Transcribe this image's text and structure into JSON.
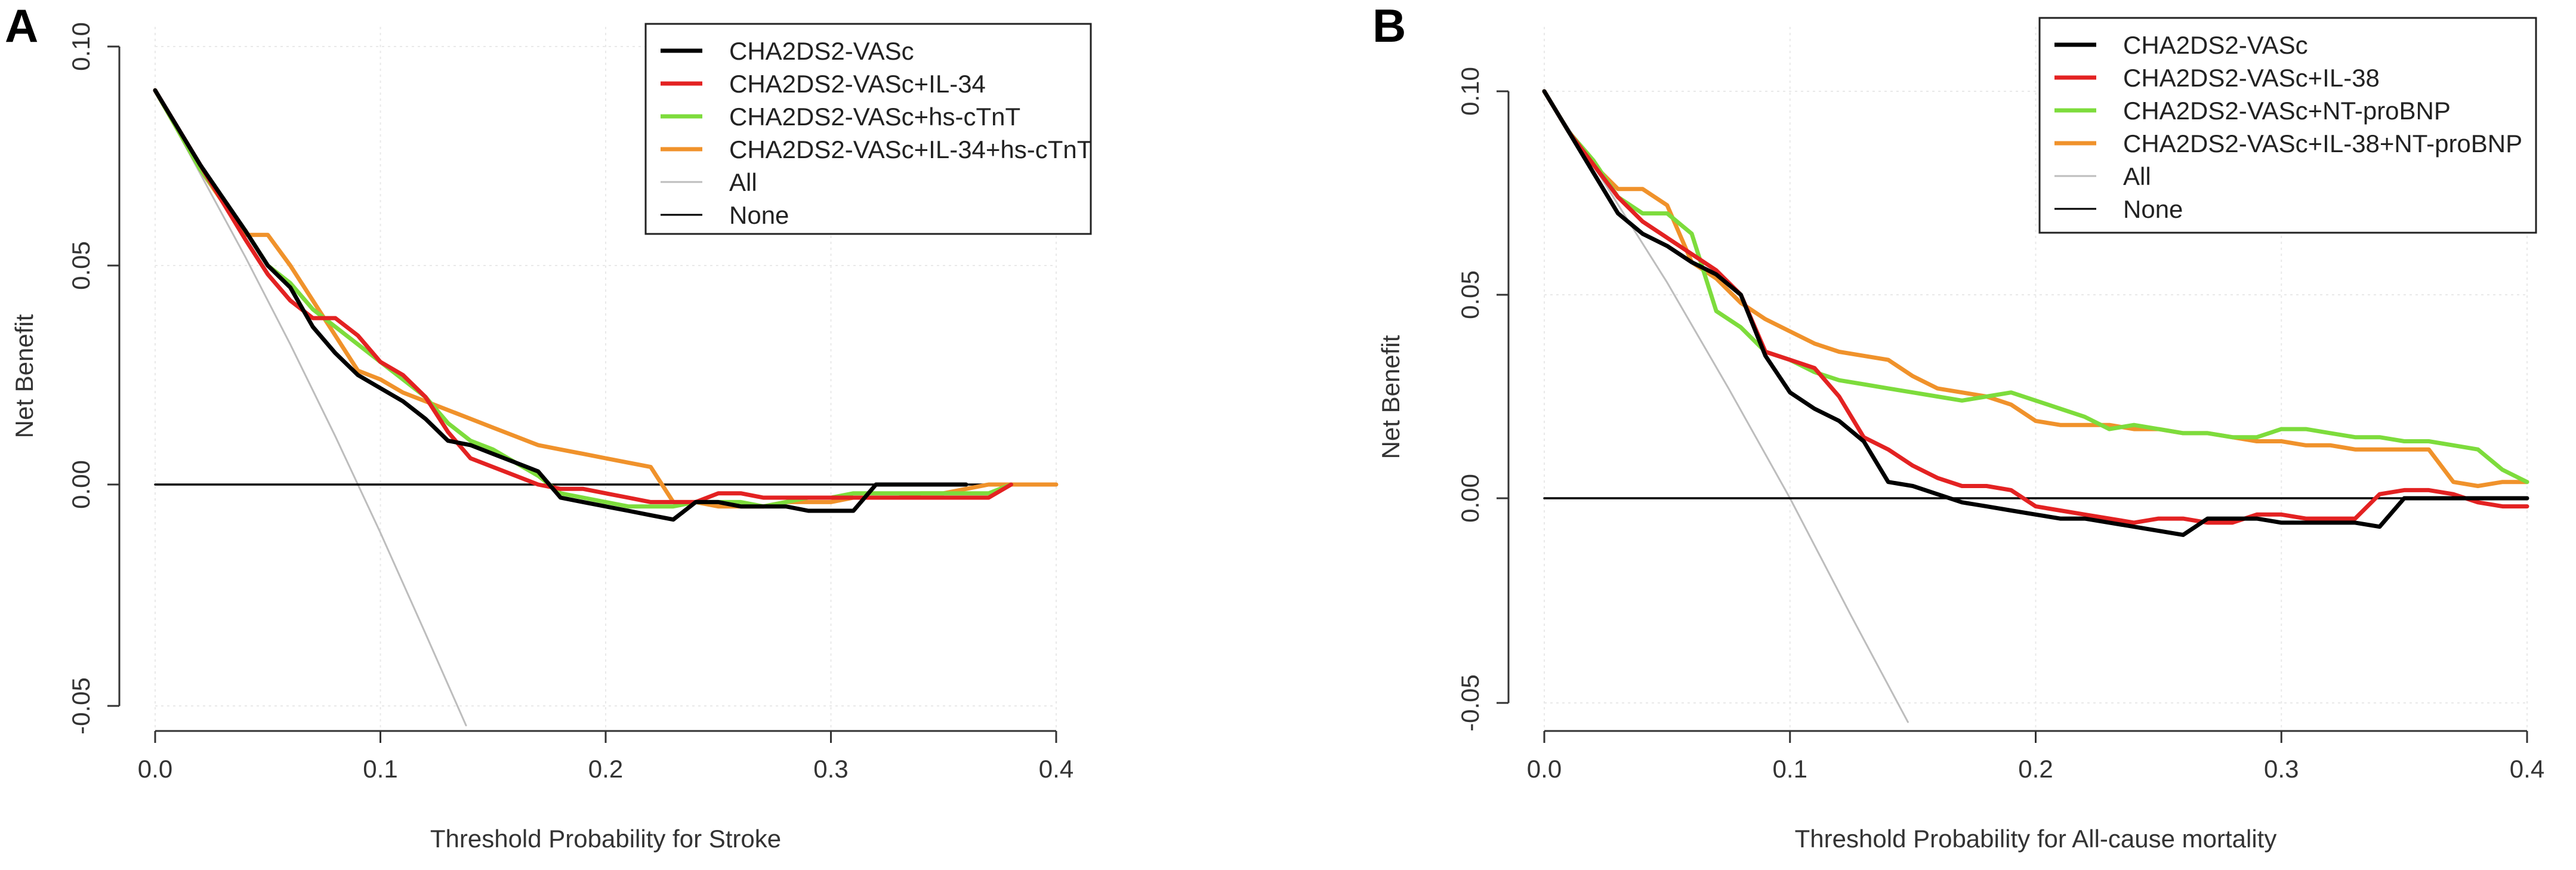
{
  "chart_data": [
    {
      "panel": "A",
      "type": "line",
      "title": "",
      "xlabel": "Threshold Probability for Stroke",
      "ylabel": "Net Benefit",
      "xlim": [
        0,
        0.4
      ],
      "ylim": [
        -0.055,
        0.1
      ],
      "xticks": [
        0.0,
        0.1,
        0.2,
        0.3,
        0.4
      ],
      "xtick_labels": [
        "0.0",
        "0.1",
        "0.2",
        "0.3",
        "0.4"
      ],
      "yticks": [
        -0.05,
        0.0,
        0.05,
        0.1
      ],
      "ytick_labels": [
        "-0.05",
        "0.00",
        "0.05",
        "0.10"
      ],
      "grid": true,
      "legend_position": "top-right",
      "series": [
        {
          "name": "CHA2DS2-VASc",
          "color": "#000000",
          "x": [
            0,
            0.02,
            0.04,
            0.05,
            0.06,
            0.07,
            0.08,
            0.09,
            0.1,
            0.11,
            0.12,
            0.13,
            0.14,
            0.15,
            0.16,
            0.17,
            0.18,
            0.19,
            0.2,
            0.21,
            0.22,
            0.23,
            0.24,
            0.25,
            0.26,
            0.27,
            0.28,
            0.29,
            0.3,
            0.31,
            0.32,
            0.33,
            0.34,
            0.35,
            0.36
          ],
          "y": [
            0.09,
            0.073,
            0.058,
            0.05,
            0.045,
            0.036,
            0.03,
            0.025,
            0.022,
            0.019,
            0.015,
            0.01,
            0.009,
            0.007,
            0.005,
            0.003,
            -0.003,
            -0.004,
            -0.005,
            -0.006,
            -0.007,
            -0.008,
            -0.004,
            -0.004,
            -0.005,
            -0.005,
            -0.005,
            -0.006,
            -0.006,
            -0.006,
            0.0,
            0.0,
            0.0,
            0.0,
            0.0
          ]
        },
        {
          "name": "CHA2DS2-VASc+IL-34",
          "color": "#e32222",
          "x": [
            0,
            0.02,
            0.04,
            0.05,
            0.06,
            0.07,
            0.08,
            0.09,
            0.1,
            0.11,
            0.12,
            0.13,
            0.14,
            0.15,
            0.16,
            0.17,
            0.18,
            0.19,
            0.2,
            0.21,
            0.22,
            0.23,
            0.24,
            0.25,
            0.26,
            0.27,
            0.28,
            0.29,
            0.3,
            0.31,
            0.32,
            0.33,
            0.34,
            0.35,
            0.36,
            0.37,
            0.38
          ],
          "y": [
            0.09,
            0.073,
            0.056,
            0.048,
            0.042,
            0.038,
            0.038,
            0.034,
            0.028,
            0.025,
            0.02,
            0.012,
            0.006,
            0.004,
            0.002,
            0.0,
            -0.001,
            -0.001,
            -0.002,
            -0.003,
            -0.004,
            -0.004,
            -0.004,
            -0.002,
            -0.002,
            -0.003,
            -0.003,
            -0.003,
            -0.003,
            -0.003,
            -0.003,
            -0.003,
            -0.003,
            -0.003,
            -0.003,
            -0.003,
            0.0
          ]
        },
        {
          "name": "CHA2DS2-VASc+hs-cTnT",
          "color": "#7ddc3c",
          "x": [
            0,
            0.02,
            0.04,
            0.05,
            0.06,
            0.07,
            0.08,
            0.09,
            0.1,
            0.11,
            0.12,
            0.13,
            0.14,
            0.15,
            0.16,
            0.17,
            0.18,
            0.19,
            0.2,
            0.21,
            0.22,
            0.23,
            0.24,
            0.25,
            0.26,
            0.27,
            0.28,
            0.29,
            0.3,
            0.31,
            0.32,
            0.33,
            0.34,
            0.35,
            0.36,
            0.37,
            0.38
          ],
          "y": [
            0.09,
            0.072,
            0.058,
            0.05,
            0.046,
            0.04,
            0.036,
            0.032,
            0.028,
            0.024,
            0.02,
            0.014,
            0.01,
            0.008,
            0.005,
            0.002,
            -0.002,
            -0.003,
            -0.004,
            -0.005,
            -0.005,
            -0.005,
            -0.004,
            -0.004,
            -0.004,
            -0.005,
            -0.004,
            -0.003,
            -0.003,
            -0.002,
            -0.002,
            -0.002,
            -0.002,
            -0.002,
            -0.002,
            -0.002,
            0.0
          ]
        },
        {
          "name": "CHA2DS2-VASc+IL-34+hs-cTnT",
          "color": "#f0922b",
          "x": [
            0,
            0.02,
            0.04,
            0.045,
            0.05,
            0.06,
            0.07,
            0.08,
            0.09,
            0.1,
            0.11,
            0.12,
            0.13,
            0.14,
            0.15,
            0.16,
            0.17,
            0.18,
            0.19,
            0.2,
            0.21,
            0.22,
            0.23,
            0.24,
            0.25,
            0.26,
            0.27,
            0.28,
            0.29,
            0.3,
            0.31,
            0.32,
            0.33,
            0.34,
            0.35,
            0.36,
            0.37,
            0.38,
            0.39,
            0.4
          ],
          "y": [
            0.09,
            0.072,
            0.057,
            0.057,
            0.057,
            0.05,
            0.042,
            0.034,
            0.026,
            0.024,
            0.021,
            0.019,
            0.017,
            0.015,
            0.013,
            0.011,
            0.009,
            0.008,
            0.007,
            0.006,
            0.005,
            0.004,
            -0.004,
            -0.004,
            -0.005,
            -0.005,
            -0.005,
            -0.004,
            -0.004,
            -0.004,
            -0.003,
            -0.003,
            -0.003,
            -0.002,
            -0.002,
            -0.001,
            0.0,
            0.0,
            0.0,
            0.0
          ]
        },
        {
          "name": "All",
          "color": "#bdbdbd",
          "x": [
            0,
            0.02,
            0.04,
            0.06,
            0.08,
            0.1,
            0.12,
            0.138
          ],
          "y": [
            0.09,
            0.071,
            0.052,
            0.032,
            0.011,
            -0.011,
            -0.034,
            -0.055
          ]
        },
        {
          "name": "None",
          "color": "#000000",
          "x": [
            0,
            0.4
          ],
          "y": [
            0,
            0
          ]
        }
      ]
    },
    {
      "panel": "B",
      "type": "line",
      "title": "",
      "xlabel": "Threshold Probability for All-cause mortality",
      "ylabel": "Net Benefit",
      "xlim": [
        0,
        0.4
      ],
      "ylim": [
        -0.055,
        0.1
      ],
      "xticks": [
        0.0,
        0.1,
        0.2,
        0.3,
        0.4
      ],
      "xtick_labels": [
        "0.0",
        "0.1",
        "0.2",
        "0.3",
        "0.4"
      ],
      "yticks": [
        -0.05,
        0.0,
        0.05,
        0.1
      ],
      "ytick_labels": [
        "-0.05",
        "0.00",
        "0.05",
        "0.10"
      ],
      "grid": true,
      "legend_position": "top-right",
      "series": [
        {
          "name": "CHA2DS2-VASc",
          "color": "#000000",
          "x": [
            0,
            0.01,
            0.02,
            0.03,
            0.04,
            0.05,
            0.06,
            0.07,
            0.08,
            0.09,
            0.1,
            0.11,
            0.12,
            0.13,
            0.14,
            0.15,
            0.16,
            0.17,
            0.18,
            0.19,
            0.2,
            0.21,
            0.22,
            0.23,
            0.24,
            0.25,
            0.26,
            0.27,
            0.28,
            0.29,
            0.3,
            0.31,
            0.32,
            0.33,
            0.34,
            0.35,
            0.36,
            0.37,
            0.38,
            0.39,
            0.4
          ],
          "y": [
            0.1,
            0.09,
            0.08,
            0.07,
            0.065,
            0.062,
            0.058,
            0.055,
            0.05,
            0.035,
            0.026,
            0.022,
            0.019,
            0.014,
            0.004,
            0.003,
            0.001,
            -0.001,
            -0.002,
            -0.003,
            -0.004,
            -0.005,
            -0.005,
            -0.006,
            -0.007,
            -0.008,
            -0.009,
            -0.005,
            -0.005,
            -0.005,
            -0.006,
            -0.006,
            -0.006,
            -0.006,
            -0.007,
            0.0,
            0.0,
            0.0,
            0.0,
            0.0,
            0.0
          ]
        },
        {
          "name": "CHA2DS2-VASc+IL-38",
          "color": "#e32222",
          "x": [
            0,
            0.01,
            0.02,
            0.03,
            0.04,
            0.05,
            0.06,
            0.07,
            0.08,
            0.09,
            0.1,
            0.11,
            0.12,
            0.13,
            0.14,
            0.15,
            0.16,
            0.17,
            0.18,
            0.19,
            0.2,
            0.21,
            0.22,
            0.23,
            0.24,
            0.25,
            0.26,
            0.27,
            0.28,
            0.29,
            0.3,
            0.31,
            0.32,
            0.33,
            0.34,
            0.35,
            0.36,
            0.37,
            0.38,
            0.39,
            0.4
          ],
          "y": [
            0.1,
            0.09,
            0.082,
            0.074,
            0.068,
            0.064,
            0.06,
            0.056,
            0.05,
            0.036,
            0.034,
            0.032,
            0.025,
            0.015,
            0.012,
            0.008,
            0.005,
            0.003,
            0.003,
            0.002,
            -0.002,
            -0.003,
            -0.004,
            -0.005,
            -0.006,
            -0.005,
            -0.005,
            -0.006,
            -0.006,
            -0.004,
            -0.004,
            -0.005,
            -0.005,
            -0.005,
            0.001,
            0.002,
            0.002,
            0.001,
            -0.001,
            -0.002,
            -0.002
          ]
        },
        {
          "name": "CHA2DS2-VASc+NT-proBNP",
          "color": "#7ddc3c",
          "x": [
            0,
            0.01,
            0.02,
            0.03,
            0.04,
            0.05,
            0.06,
            0.07,
            0.08,
            0.09,
            0.1,
            0.11,
            0.12,
            0.13,
            0.14,
            0.15,
            0.16,
            0.17,
            0.18,
            0.19,
            0.2,
            0.21,
            0.22,
            0.23,
            0.24,
            0.25,
            0.26,
            0.27,
            0.28,
            0.29,
            0.3,
            0.31,
            0.32,
            0.33,
            0.34,
            0.35,
            0.36,
            0.37,
            0.38,
            0.39,
            0.4
          ],
          "y": [
            0.1,
            0.09,
            0.083,
            0.074,
            0.07,
            0.07,
            0.065,
            0.046,
            0.042,
            0.036,
            0.034,
            0.031,
            0.029,
            0.028,
            0.027,
            0.026,
            0.025,
            0.024,
            0.025,
            0.026,
            0.024,
            0.022,
            0.02,
            0.017,
            0.018,
            0.017,
            0.016,
            0.016,
            0.015,
            0.015,
            0.017,
            0.017,
            0.016,
            0.015,
            0.015,
            0.014,
            0.014,
            0.013,
            0.012,
            0.007,
            0.004
          ]
        },
        {
          "name": "CHA2DS2-VASc+IL-38+NT-proBNP",
          "color": "#f0922b",
          "x": [
            0,
            0.01,
            0.02,
            0.03,
            0.04,
            0.05,
            0.06,
            0.07,
            0.08,
            0.09,
            0.1,
            0.11,
            0.12,
            0.13,
            0.14,
            0.15,
            0.16,
            0.17,
            0.18,
            0.19,
            0.2,
            0.21,
            0.22,
            0.23,
            0.24,
            0.25,
            0.26,
            0.27,
            0.28,
            0.29,
            0.3,
            0.31,
            0.32,
            0.33,
            0.34,
            0.35,
            0.36,
            0.37,
            0.38,
            0.39,
            0.4
          ],
          "y": [
            0.1,
            0.09,
            0.082,
            0.076,
            0.076,
            0.072,
            0.058,
            0.054,
            0.048,
            0.044,
            0.041,
            0.038,
            0.036,
            0.035,
            0.034,
            0.03,
            0.027,
            0.026,
            0.025,
            0.023,
            0.019,
            0.018,
            0.018,
            0.018,
            0.017,
            0.017,
            0.016,
            0.016,
            0.015,
            0.014,
            0.014,
            0.013,
            0.013,
            0.012,
            0.012,
            0.012,
            0.012,
            0.004,
            0.003,
            0.004,
            0.004
          ]
        },
        {
          "name": "All",
          "color": "#bdbdbd",
          "x": [
            0,
            0.025,
            0.05,
            0.075,
            0.1,
            0.125,
            0.148
          ],
          "y": [
            0.1,
            0.077,
            0.053,
            0.027,
            0.0,
            -0.029,
            -0.055
          ]
        },
        {
          "name": "None",
          "color": "#000000",
          "x": [
            0,
            0.4
          ],
          "y": [
            0,
            0
          ]
        }
      ]
    }
  ]
}
